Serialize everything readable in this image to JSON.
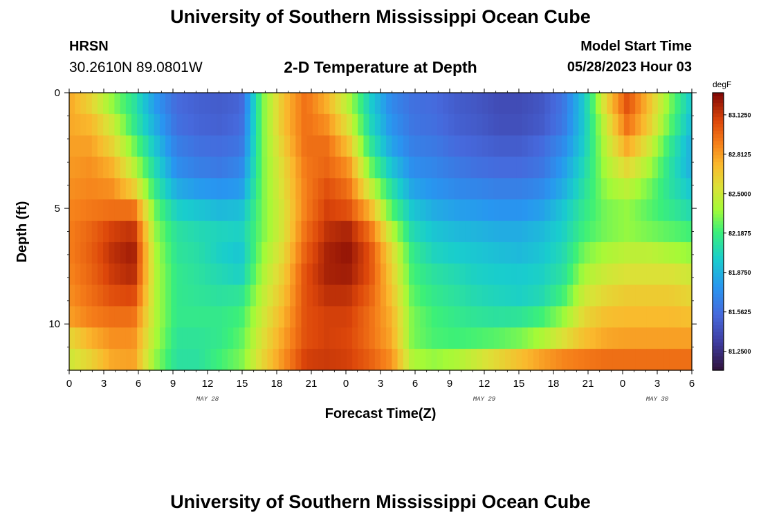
{
  "header": {
    "title": "University of Southern Mississippi Ocean Cube",
    "station": "HRSN",
    "coordinates": "30.2610N  89.0801W",
    "plot_title": "2-D Temperature at Depth",
    "model_start_label": "Model Start Time",
    "model_start_value": "05/28/2023 Hour 03"
  },
  "footer": {
    "title": "University of Southern Mississippi Ocean Cube"
  },
  "chart_data": {
    "type": "heatmap",
    "title": "2-D Temperature at Depth",
    "xlabel": "Forecast Time(Z)",
    "ylabel": "Depth (ft)",
    "x_hours_range": [
      0,
      54
    ],
    "y_range_ft": [
      0,
      12
    ],
    "x_ticks": [
      "0",
      "3",
      "6",
      "9",
      "12",
      "15",
      "18",
      "21",
      "0",
      "3",
      "6",
      "9",
      "12",
      "15",
      "18",
      "21",
      "0",
      "3",
      "6"
    ],
    "y_ticks": [
      "0",
      "5",
      "10"
    ],
    "y_tick_values": [
      0,
      5,
      10
    ],
    "date_labels": [
      {
        "label": "MAY 28",
        "hour": 12
      },
      {
        "label": "MAY 29",
        "hour": 36
      },
      {
        "label": "MAY 30",
        "hour": 51
      }
    ],
    "colorbar": {
      "unit": "degF",
      "min": 81.1,
      "max": 83.3,
      "ticks": [
        "83.1250",
        "82.8125",
        "82.5000",
        "82.1875",
        "81.8750",
        "81.5625",
        "81.2500"
      ],
      "tick_values": [
        83.125,
        82.8125,
        82.5,
        82.1875,
        81.875,
        81.5625,
        81.25
      ]
    },
    "series": [
      {
        "name": "0 ft",
        "values": [
          82.78,
          82.62,
          82.35,
          82.12,
          81.78,
          81.55,
          81.5,
          81.48,
          81.52,
          82.3,
          82.7,
          82.95,
          82.75,
          82.43,
          82.0,
          81.7,
          81.58,
          81.55,
          81.48,
          81.45,
          81.4,
          81.4,
          81.45,
          81.6,
          81.98,
          82.6,
          83.05,
          82.7,
          82.3,
          81.95
        ]
      },
      {
        "name": "1 ft",
        "values": [
          82.78,
          82.73,
          82.5,
          82.16,
          81.85,
          81.58,
          81.52,
          81.5,
          81.55,
          82.3,
          82.7,
          82.95,
          82.85,
          82.55,
          82.05,
          81.75,
          81.6,
          81.57,
          81.5,
          81.47,
          81.42,
          81.42,
          81.47,
          81.62,
          81.98,
          82.5,
          82.95,
          82.65,
          82.25,
          81.9
        ]
      },
      {
        "name": "2 ft",
        "values": [
          82.8,
          82.8,
          82.62,
          82.3,
          81.95,
          81.65,
          81.58,
          81.56,
          81.6,
          82.3,
          82.65,
          82.95,
          82.95,
          82.7,
          82.15,
          81.82,
          81.65,
          81.62,
          81.55,
          81.52,
          81.48,
          81.48,
          81.55,
          81.7,
          82.0,
          82.45,
          82.78,
          82.52,
          82.15,
          81.85
        ]
      },
      {
        "name": "3 ft",
        "values": [
          82.82,
          82.85,
          82.75,
          82.45,
          82.05,
          81.72,
          81.65,
          81.62,
          81.68,
          82.3,
          82.6,
          82.92,
          82.98,
          82.85,
          82.3,
          81.95,
          81.72,
          81.68,
          81.62,
          81.58,
          81.55,
          81.55,
          81.6,
          81.78,
          82.05,
          82.4,
          82.6,
          82.4,
          82.1,
          81.85
        ]
      },
      {
        "name": "4 ft",
        "values": [
          82.85,
          82.88,
          82.85,
          82.65,
          82.15,
          81.85,
          81.78,
          81.75,
          81.78,
          82.3,
          82.58,
          82.9,
          83.05,
          82.95,
          82.5,
          82.1,
          81.82,
          81.75,
          81.7,
          81.68,
          81.65,
          81.65,
          81.7,
          81.85,
          82.1,
          82.35,
          82.45,
          82.3,
          82.1,
          81.95
        ]
      },
      {
        "name": "5 ft",
        "values": [
          82.88,
          82.92,
          82.95,
          82.95,
          82.28,
          82.0,
          81.95,
          81.9,
          81.92,
          82.3,
          82.55,
          82.9,
          83.1,
          83.05,
          82.75,
          82.25,
          81.95,
          81.85,
          81.8,
          81.78,
          81.75,
          81.75,
          81.8,
          81.95,
          82.15,
          82.3,
          82.35,
          82.25,
          82.15,
          82.05
        ]
      },
      {
        "name": "6 ft",
        "values": [
          82.9,
          82.98,
          83.1,
          83.15,
          82.35,
          82.1,
          82.05,
          82.02,
          82.0,
          82.3,
          82.55,
          82.95,
          83.15,
          83.2,
          82.95,
          82.45,
          82.05,
          81.95,
          81.9,
          81.88,
          81.85,
          81.85,
          81.9,
          82.0,
          82.2,
          82.3,
          82.35,
          82.3,
          82.25,
          82.2
        ]
      },
      {
        "name": "7 ft",
        "values": [
          82.9,
          83.0,
          83.15,
          83.22,
          82.4,
          82.12,
          82.08,
          82.0,
          81.95,
          82.35,
          82.6,
          83.0,
          83.2,
          83.25,
          83.05,
          82.6,
          82.15,
          82.02,
          81.98,
          81.95,
          81.92,
          81.9,
          81.95,
          82.05,
          82.3,
          82.4,
          82.45,
          82.45,
          82.4,
          82.35
        ]
      },
      {
        "name": "8 ft",
        "values": [
          82.88,
          82.98,
          83.12,
          83.18,
          82.42,
          82.15,
          82.1,
          82.05,
          82.0,
          82.4,
          82.65,
          83.05,
          83.2,
          83.22,
          83.05,
          82.65,
          82.2,
          82.1,
          82.05,
          82.0,
          81.98,
          81.97,
          82.0,
          82.1,
          82.4,
          82.5,
          82.55,
          82.55,
          82.55,
          82.5
        ]
      },
      {
        "name": "9 ft",
        "values": [
          82.85,
          82.95,
          83.05,
          83.08,
          82.42,
          82.15,
          82.12,
          82.1,
          82.12,
          82.45,
          82.7,
          83.05,
          83.15,
          83.15,
          83.0,
          82.7,
          82.25,
          82.15,
          82.1,
          82.05,
          82.02,
          82.0,
          82.05,
          82.2,
          82.5,
          82.6,
          82.65,
          82.65,
          82.65,
          82.6
        ]
      },
      {
        "name": "10 ft",
        "values": [
          82.8,
          82.9,
          82.95,
          82.95,
          82.42,
          82.15,
          82.15,
          82.15,
          82.2,
          82.5,
          82.75,
          83.05,
          83.1,
          83.1,
          82.95,
          82.75,
          82.3,
          82.2,
          82.15,
          82.12,
          82.1,
          82.12,
          82.2,
          82.35,
          82.6,
          82.7,
          82.72,
          82.72,
          82.72,
          82.7
        ]
      },
      {
        "name": "11 ft",
        "values": [
          82.6,
          82.75,
          82.85,
          82.85,
          82.4,
          82.12,
          82.12,
          82.15,
          82.25,
          82.55,
          82.8,
          83.05,
          83.1,
          83.08,
          82.95,
          82.78,
          82.3,
          82.22,
          82.2,
          82.22,
          82.25,
          82.3,
          82.4,
          82.55,
          82.7,
          82.78,
          82.8,
          82.8,
          82.8,
          82.8
        ]
      },
      {
        "name": "12 ft",
        "values": [
          82.5,
          82.62,
          82.78,
          82.8,
          82.35,
          82.1,
          82.1,
          82.2,
          82.3,
          82.6,
          82.85,
          83.1,
          83.12,
          83.1,
          83.0,
          82.85,
          82.4,
          82.35,
          82.4,
          82.5,
          82.6,
          82.7,
          82.8,
          82.88,
          82.92,
          82.95,
          82.95,
          82.95,
          82.95,
          82.95
        ]
      }
    ]
  }
}
